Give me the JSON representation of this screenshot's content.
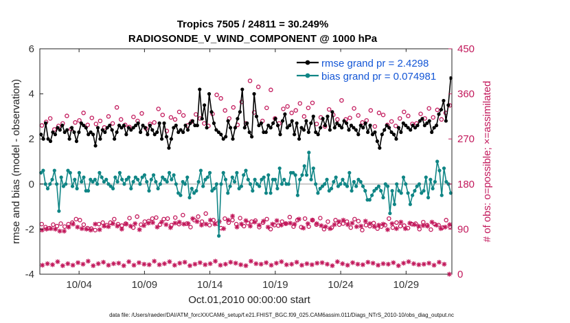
{
  "colors": {
    "rmse": "#000000",
    "bias": "#0f8585",
    "obs": "#c2185b",
    "legend_text": "#1356d6",
    "zero_line": "#c8c8c8"
  },
  "chart_data": {
    "type": "line",
    "title": "Tropics 7505 / 24811 = 30.249%",
    "subtitle": "RADIOSONDE_V_WIND_COMPONENT @ 1000 hPa",
    "xlabel": "Oct.01,2010 00:00:00 start",
    "ylabel": "rmse and bias (model - observation)",
    "y2label": "# of obs: o=possible; ×=assimilated",
    "x_tick_labels": [
      "10/04",
      "10/09",
      "10/14",
      "10/19",
      "10/24",
      "10/29"
    ],
    "x_tick_days": [
      4,
      9,
      14,
      19,
      24,
      29
    ],
    "xlim": [
      1,
      32.5
    ],
    "ylim": [
      -4,
      6
    ],
    "y_ticks": [
      "-4",
      "-2",
      "0",
      "2",
      "4",
      "6"
    ],
    "y2lim": [
      0,
      450
    ],
    "y2_ticks": [
      "0",
      "90",
      "180",
      "270",
      "360",
      "450"
    ],
    "legend_position": "top-right",
    "legend": [
      "rmse grand pr = 2.4298",
      "bias grand pr = 0.074981"
    ],
    "footer": "data file: /Users/raeder/DAI/ATM_forcXX/CAM6_setup/f.e21.FHIST_BGC.f09_025.CAM6assim.011/Diags_NTrS_2010-10/obs_diag_output.nc",
    "series": [
      {
        "name": "rmse",
        "values": [
          2.2,
          2.0,
          2.7,
          2.0,
          1.9,
          2.3,
          2.2,
          2.5,
          2.4,
          2.6,
          2.3,
          2.4,
          2.0,
          2.5,
          2.3,
          1.9,
          2.3,
          2.7,
          2.6,
          2.5,
          2.2,
          2.3,
          2.2,
          1.7,
          2.5,
          2.0,
          2.4,
          2.3,
          2.5,
          2.6,
          2.4,
          2.0,
          2.3,
          2.6,
          2.5,
          2.6,
          2.2,
          2.5,
          2.4,
          2.5,
          2.6,
          2.7,
          2.3,
          2.6,
          2.5,
          2.2,
          2.6,
          2.4,
          2.2,
          2.3,
          2.7,
          2.0,
          2.7,
          2.1,
          1.6,
          2.0,
          2.5,
          2.6,
          2.3,
          2.4,
          2.3,
          2.6,
          2.4,
          2.7,
          2.8,
          2.6,
          2.6,
          4.2,
          2.9,
          3.5,
          2.5,
          4.0,
          3.2,
          2.7,
          2.4,
          2.3,
          2.2,
          2.0,
          2.1,
          2.8,
          2.5,
          2.0,
          2.5,
          2.9,
          3.2,
          4.2,
          2.5,
          2.7,
          2.3,
          2.1,
          4.0,
          3.0,
          2.6,
          2.7,
          2.3,
          2.3,
          2.6,
          2.5,
          2.7,
          2.9,
          2.6,
          2.2,
          2.8,
          3.1,
          2.5,
          2.6,
          2.8,
          2.2,
          2.7,
          2.0,
          2.5,
          2.4,
          2.8,
          2.3,
          2.7,
          3.0,
          2.3,
          2.2,
          2.5,
          2.9,
          2.6,
          3.0,
          2.4,
          3.2,
          2.5,
          2.7,
          2.6,
          2.5,
          2.8,
          2.7,
          2.4,
          2.6,
          2.5,
          2.4,
          2.2,
          2.6,
          2.5,
          2.7,
          2.3,
          2.6,
          2.2,
          2.3,
          1.9,
          1.6,
          2.2,
          2.4,
          2.6,
          2.5,
          2.3,
          2.2,
          2.0,
          2.5,
          2.3,
          2.7,
          2.6,
          2.5,
          2.4,
          2.6,
          2.5,
          2.6,
          2.8,
          2.9,
          2.6,
          2.7,
          2.8,
          2.3,
          2.5,
          2.6,
          3.1,
          3.3,
          3.7,
          2.8,
          3.5,
          4.7
        ]
      },
      {
        "name": "bias",
        "values": [
          0.5,
          0.6,
          0.0,
          -0.2,
          0.0,
          0.2,
          0.6,
          0.0,
          -1.2,
          0.3,
          -0.1,
          0.0,
          0.6,
          0.5,
          -0.1,
          0.2,
          -0.2,
          0.5,
          0.1,
          0.3,
          -0.3,
          -0.3,
          0.2,
          0.1,
          0.2,
          0.0,
          0.5,
          0.3,
          0.1,
          0.2,
          0.0,
          -0.1,
          -0.2,
          0.3,
          0.1,
          0.5,
          0.2,
          0.0,
          0.2,
          0.3,
          -0.2,
          0.1,
          0.3,
          0.2,
          0.0,
          0.3,
          0.4,
          0.1,
          -0.3,
          0.2,
          0.4,
          0.1,
          -0.2,
          0.0,
          0.3,
          0.2,
          0.1,
          0.5,
          0.2,
          0.4,
          0.0,
          -0.4,
          -0.5,
          0.1,
          0.0,
          0.3,
          -0.6,
          -0.2,
          -0.4,
          -0.3,
          0.1,
          0.6,
          -0.1,
          0.2,
          0.3,
          0.5,
          -0.3,
          -0.2,
          0.0,
          -2.3,
          0.0,
          0.5,
          0.2,
          -0.4,
          -0.1,
          0.3,
          0.1,
          0.5,
          -0.2,
          -0.1,
          0.4,
          0.6,
          0.2,
          0.0,
          -0.3,
          0.2,
          0.0,
          -0.1,
          0.2,
          0.3,
          -0.4,
          0.4,
          -0.4,
          0.2,
          0.2,
          -0.2,
          0.7,
          0.0,
          0.2,
          0.0,
          0.0,
          0.5,
          0.5,
          0.4,
          -0.5,
          0.2,
          0.4,
          0.8,
          0.4,
          1.4,
          0.2,
          0.7,
          0.0,
          -0.4,
          -0.2,
          -0.1,
          0.0,
          0.2,
          -0.3,
          -0.2,
          0.1,
          0.3,
          -0.1,
          0.0,
          0.2,
          0.0,
          -0.1,
          0.5,
          -0.3,
          0.1,
          -0.1,
          0.2,
          0.1,
          -0.1,
          -0.3,
          -0.7,
          -0.7,
          -0.5,
          -0.3,
          -0.2,
          -0.1,
          -0.3,
          -0.6,
          0.0,
          -0.1,
          -1.3,
          -0.3,
          -0.9,
          0.0,
          -0.3,
          -0.4,
          0.3,
          0.0,
          -0.4,
          -0.9,
          -0.5,
          -0.3,
          -0.1,
          0.0,
          -0.4,
          -0.3,
          0.3,
          -0.6,
          0.2,
          -0.2,
          0.1,
          1.0,
          0.6,
          -0.5,
          0.7,
          0.1,
          0.0,
          -0.4
        ]
      },
      {
        "name": "obs possible (upper band)",
        "values": [
          297,
          304,
          311,
          289,
          296,
          301,
          316,
          290,
          303,
          307,
          322,
          298,
          312,
          300,
          306,
          293,
          315,
          301,
          333,
          309,
          298,
          294,
          314,
          306,
          321,
          291,
          300,
          303,
          330,
          318,
          286,
          313,
          309,
          324,
          317,
          297,
          305,
          319,
          311,
          301,
          296,
          320,
          358,
          351,
          327,
          311,
          333,
          298,
          344,
          301,
          386,
          323,
          374,
          306,
          332,
          368,
          311,
          301,
          330,
          335,
          322,
          327,
          341,
          315,
          332,
          342,
          300,
          313,
          295,
          329,
          318,
          309,
          347,
          309,
          312,
          331,
          317,
          303,
          307,
          327,
          295,
          322,
          318,
          298,
          305,
          296,
          311,
          324,
          316,
          300,
          301,
          320,
          311,
          331,
          313,
          328,
          309,
          322,
          337
        ]
      },
      {
        "name": "obs possible (lower band)",
        "values": [
          100,
          94,
          92,
          99,
          96,
          101,
          95,
          100,
          103,
          110,
          108,
          99,
          92,
          91,
          88,
          100,
          103,
          98,
          103,
          110,
          100,
          97,
          101,
          112,
          93,
          115,
          99,
          105,
          106,
          111,
          113,
          99,
          110,
          111,
          98,
          113,
          100,
          118,
          101,
          94,
          108,
          115,
          105,
          121,
          98,
          108,
          101,
          92,
          111,
          103,
          108,
          100,
          112,
          96,
          102,
          105,
          107,
          94,
          103,
          110,
          90,
          98,
          97,
          105,
          101,
          114,
          95,
          108,
          94,
          111,
          95,
          108,
          99,
          112,
          90,
          105,
          93,
          108,
          99,
          101,
          105,
          93,
          110,
          106,
          88,
          98,
          96,
          102,
          91,
          95,
          98,
          111,
          93,
          103,
          96,
          97,
          92,
          100,
          101,
          90,
          104,
          98,
          89,
          100,
          98,
          93,
          108,
          95
        ]
      },
      {
        "name": "obs assimilated (upper band)",
        "values": [
          88,
          90,
          91,
          90,
          86,
          86,
          94,
          100,
          94,
          91,
          90,
          88,
          100,
          89,
          96,
          95,
          101,
          96,
          90,
          100,
          96,
          101,
          89,
          97,
          102,
          103,
          94,
          104,
          99,
          93,
          102,
          104,
          100,
          101,
          111,
          105,
          98,
          100,
          108,
          100,
          105,
          91,
          108,
          116,
          94,
          100,
          107,
          96,
          104,
          98,
          106,
          94,
          100,
          107,
          98,
          101,
          102,
          100,
          110,
          92,
          101,
          108,
          101,
          97,
          95,
          91,
          99,
          105,
          108,
          99,
          102,
          95,
          96,
          106,
          101,
          95,
          98,
          100,
          89,
          101,
          91,
          104,
          91,
          102,
          99,
          96,
          97,
          96,
          104,
          98,
          91,
          94,
          99
        ]
      },
      {
        "name": "obs assimilated (lower band)",
        "values": [
          18,
          21,
          19,
          25,
          17,
          21,
          18,
          23,
          20,
          26,
          17,
          21,
          24,
          18,
          21,
          22,
          17,
          25,
          18,
          23,
          20,
          19,
          26,
          19,
          21,
          25,
          18,
          22,
          24,
          17,
          20,
          23,
          19,
          21,
          26,
          18,
          20,
          24,
          22,
          19,
          17,
          26,
          21,
          20,
          23,
          18,
          22,
          25,
          19,
          20,
          24,
          18,
          21,
          19,
          22,
          23,
          20,
          17,
          25,
          21,
          18,
          23,
          20,
          19,
          24,
          22,
          18,
          21,
          20,
          23,
          17,
          22,
          25,
          21,
          19,
          20,
          22,
          18,
          24,
          20,
          0
        ]
      }
    ]
  }
}
